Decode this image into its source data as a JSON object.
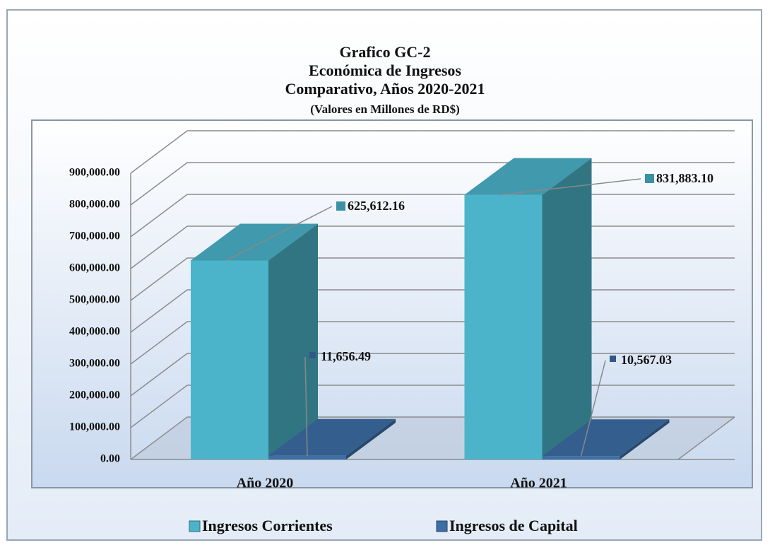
{
  "chart_data": {
    "type": "bar3d",
    "title_lines": [
      "Grafico GC-2",
      "Económica de Ingresos",
      "Comparativo, Años 2020-2021"
    ],
    "subtitle": "(Valores en Millones de RD$)",
    "categories": [
      "Año 2020",
      "Año 2021"
    ],
    "series": [
      {
        "name": "Ingresos Corrientes",
        "color": "#4bb4ca",
        "values": [
          625612.16,
          831883.1
        ],
        "value_labels": [
          "625,612.16",
          "831,883.10"
        ]
      },
      {
        "name": "Ingresos de Capital",
        "color": "#3d6fa6",
        "values": [
          11656.49,
          10567.03
        ],
        "value_labels": [
          "11,656.49",
          "10,567.03"
        ]
      }
    ],
    "ylim": [
      0,
      900000
    ],
    "yticks": [
      {
        "value": 0,
        "label": "0.00"
      },
      {
        "value": 100000,
        "label": "100,000.00"
      },
      {
        "value": 200000,
        "label": "200,000.00"
      },
      {
        "value": 300000,
        "label": "300,000.00"
      },
      {
        "value": 400000,
        "label": "400,000.00"
      },
      {
        "value": 500000,
        "label": "500,000.00"
      },
      {
        "value": 600000,
        "label": "600,000.00"
      },
      {
        "value": 700000,
        "label": "700,000.00"
      },
      {
        "value": 800000,
        "label": "800,000.00"
      },
      {
        "value": 900000,
        "label": "900,000.00"
      }
    ],
    "grid": true,
    "legend": "bottom"
  }
}
